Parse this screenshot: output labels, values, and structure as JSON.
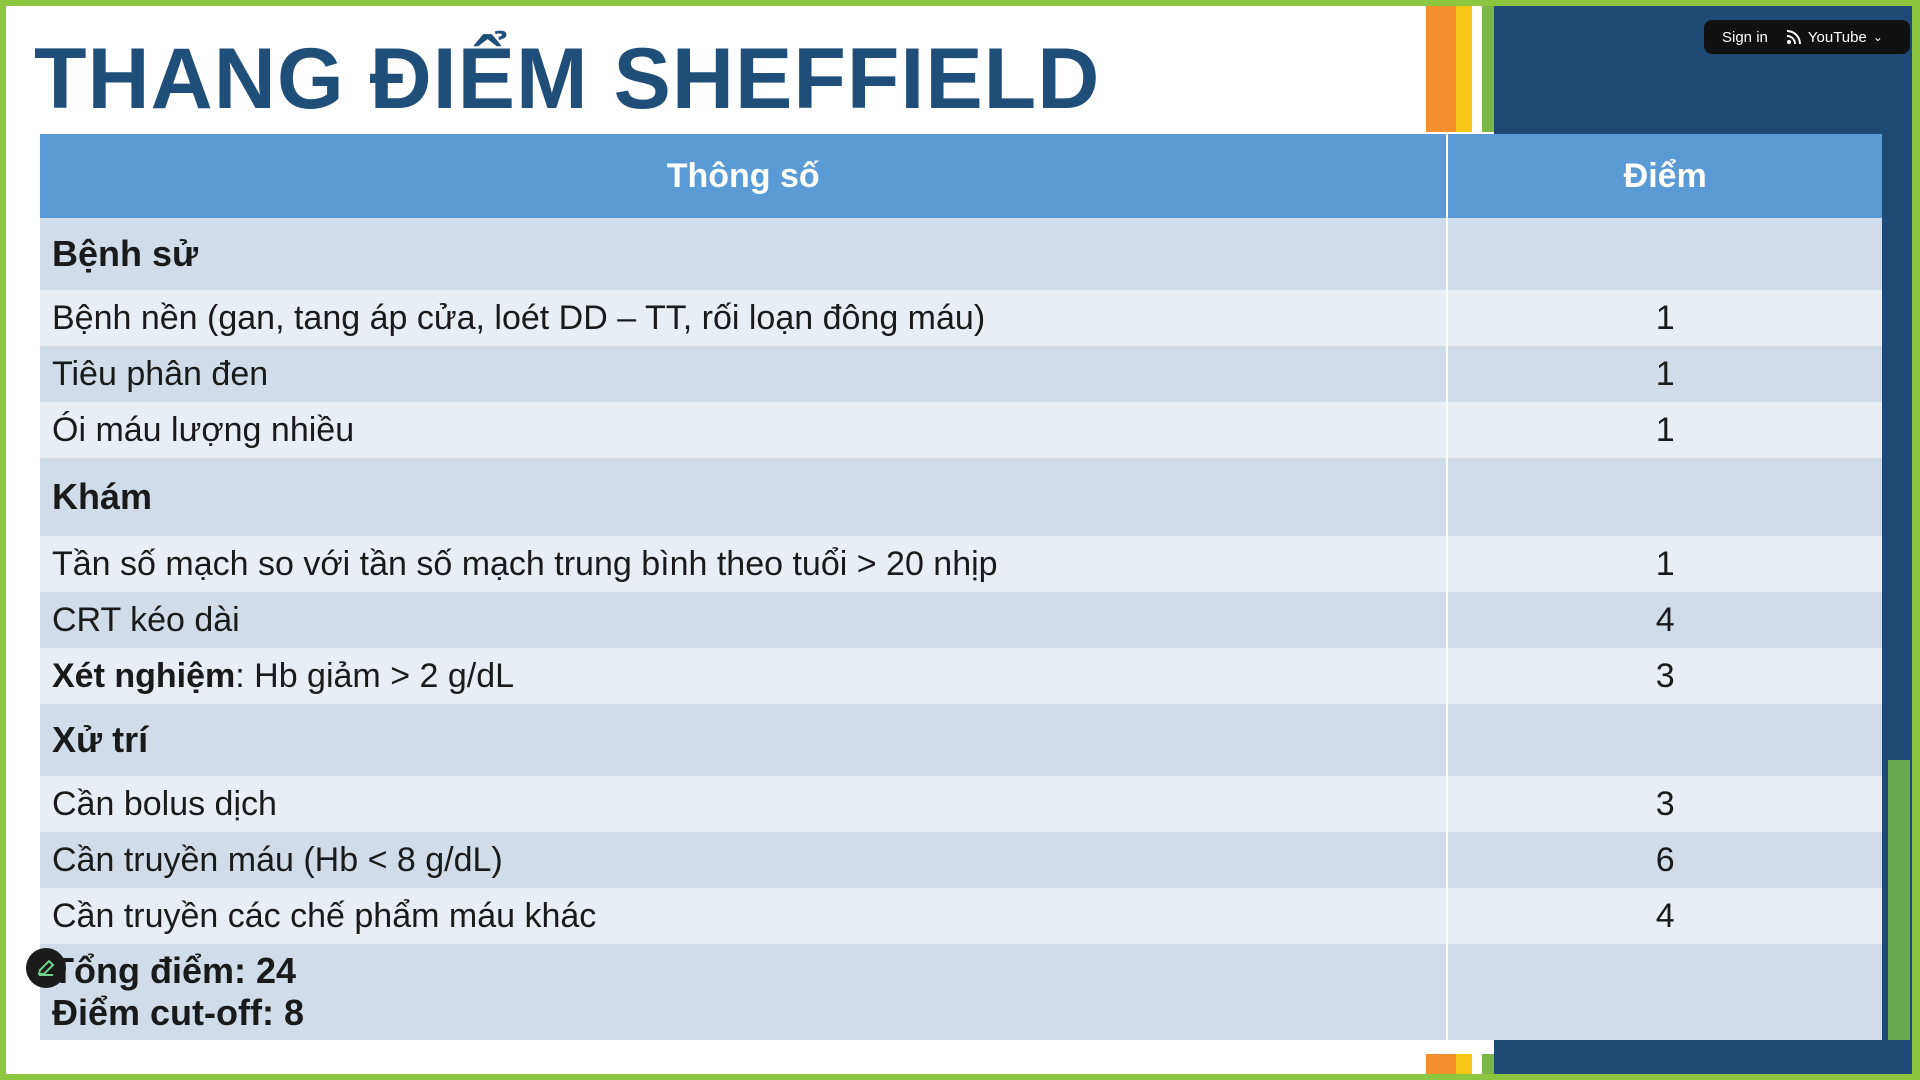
{
  "slide": {
    "title": "THANG ĐIỂM SHEFFIELD",
    "colors": {
      "title": "#1f4e79",
      "header": "#5b9bd5",
      "frame": "#8cc63f",
      "panel": "#1f4a75"
    }
  },
  "overlay": {
    "sign_in": "Sign in",
    "youtube_label": "YouTube",
    "icons": {
      "feed": "rss-icon",
      "dropdown": "chevron-down-icon",
      "edit": "pencil-icon"
    }
  },
  "table": {
    "headers": {
      "param": "Thông số",
      "score": "Điểm"
    },
    "history_section": "Bệnh sử",
    "history_rows": [
      {
        "label": "Bệnh nền (gan, tang áp cửa, loét DD – TT, rối loạn đông máu)",
        "score": "1"
      },
      {
        "label": "Tiêu phân đen",
        "score": "1"
      },
      {
        "label": "Ói máu lượng nhiều",
        "score": "1"
      }
    ],
    "exam_section": "Khám",
    "exam_rows": [
      {
        "label": "Tần số mạch so với tần số mạch trung bình theo tuổi > 20 nhịp",
        "score": "1"
      },
      {
        "label": "CRT kéo dài",
        "score": "4"
      }
    ],
    "lab_row": {
      "label_bold": "Xét nghiệm",
      "label_rest": ": Hb giảm > 2 g/dL",
      "score": "3"
    },
    "management_section": "Xử trí",
    "management_rows": [
      {
        "label": "Cần bolus dịch",
        "score": "3"
      },
      {
        "label": "Cần truyền máu (Hb < 8 g/dL)",
        "score": "6"
      },
      {
        "label": "Cần truyền các chế phẩm máu khác",
        "score": "4"
      }
    ],
    "total": "Tổng điểm: 24",
    "cutoff": "Điểm cut-off: 8"
  }
}
